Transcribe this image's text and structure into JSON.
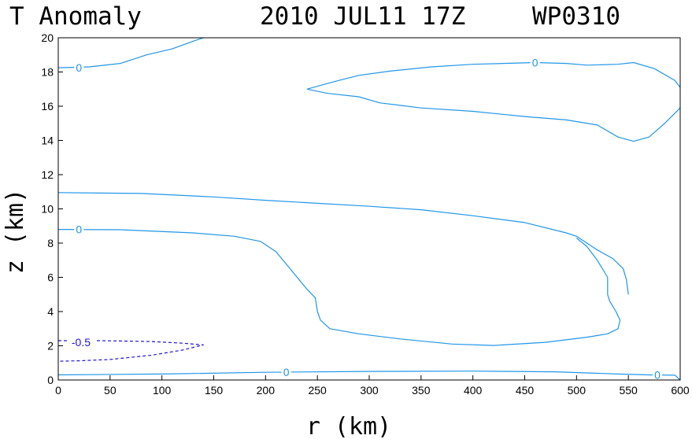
{
  "chart_data": {
    "type": "contour",
    "title": {
      "variable": "T Anomaly",
      "date": "2010 JUL11 17Z",
      "case_id": "WP0310"
    },
    "xlabel": "r (km)",
    "ylabel": "z (km)",
    "xlim": [
      0,
      600
    ],
    "ylim": [
      0,
      20
    ],
    "xticks": [
      0,
      50,
      100,
      150,
      200,
      250,
      300,
      350,
      400,
      450,
      500,
      550,
      600
    ],
    "yticks": [
      0,
      2,
      4,
      6,
      8,
      10,
      12,
      14,
      16,
      18,
      20
    ],
    "colors": {
      "positive": "#2196e8",
      "negative": "#1e14d8",
      "axes": "#000000"
    },
    "contours": [
      {
        "name": "zero-contour-top-left",
        "level": 0,
        "style": "solid",
        "label": "0",
        "label_at": [
          20,
          18.25
        ],
        "points": [
          [
            0,
            18.25
          ],
          [
            30,
            18.3
          ],
          [
            60,
            18.5
          ],
          [
            85,
            19.0
          ],
          [
            110,
            19.35
          ],
          [
            130,
            19.8
          ],
          [
            140,
            20.0
          ]
        ]
      },
      {
        "name": "zero-contour-upper-lobe",
        "level": 0,
        "style": "solid",
        "label": "0",
        "label_at": [
          460,
          18.55
        ],
        "points": [
          [
            240,
            17.0
          ],
          [
            255,
            17.25
          ],
          [
            270,
            17.5
          ],
          [
            290,
            17.8
          ],
          [
            320,
            18.05
          ],
          [
            360,
            18.3
          ],
          [
            400,
            18.45
          ],
          [
            460,
            18.55
          ],
          [
            490,
            18.5
          ],
          [
            510,
            18.4
          ],
          [
            540,
            18.45
          ],
          [
            555,
            18.55
          ],
          [
            575,
            18.2
          ],
          [
            595,
            17.5
          ],
          [
            600,
            17.1
          ]
        ]
      },
      {
        "name": "zero-contour-upper-lobe-bottom",
        "level": 0,
        "style": "solid",
        "points": [
          [
            240,
            17.0
          ],
          [
            260,
            16.75
          ],
          [
            290,
            16.55
          ],
          [
            310,
            16.2
          ],
          [
            350,
            15.9
          ],
          [
            400,
            15.7
          ],
          [
            450,
            15.4
          ],
          [
            490,
            15.2
          ],
          [
            520,
            14.9
          ],
          [
            540,
            14.2
          ],
          [
            555,
            13.95
          ],
          [
            570,
            14.2
          ],
          [
            585,
            15.0
          ],
          [
            600,
            15.9
          ]
        ]
      },
      {
        "name": "zero-contour-mid-upper",
        "level": 0,
        "style": "solid",
        "points": [
          [
            0,
            10.95
          ],
          [
            80,
            10.9
          ],
          [
            150,
            10.7
          ],
          [
            200,
            10.5
          ],
          [
            300,
            10.15
          ],
          [
            350,
            9.95
          ],
          [
            400,
            9.6
          ],
          [
            450,
            9.2
          ],
          [
            490,
            8.6
          ],
          [
            500,
            8.4
          ],
          [
            520,
            7.6
          ],
          [
            535,
            7.1
          ],
          [
            545,
            6.5
          ],
          [
            548,
            5.9
          ],
          [
            550,
            5.0
          ]
        ]
      },
      {
        "name": "zero-contour-mid-loop",
        "level": 0,
        "style": "solid",
        "label": "0",
        "label_at": [
          20,
          8.8
        ],
        "points": [
          [
            0,
            8.8
          ],
          [
            60,
            8.78
          ],
          [
            130,
            8.6
          ],
          [
            170,
            8.4
          ],
          [
            195,
            8.1
          ],
          [
            210,
            7.5
          ],
          [
            225,
            6.4
          ],
          [
            240,
            5.3
          ],
          [
            248,
            4.8
          ],
          [
            250,
            4.0
          ],
          [
            253,
            3.5
          ],
          [
            262,
            3.0
          ],
          [
            290,
            2.7
          ],
          [
            330,
            2.4
          ],
          [
            380,
            2.1
          ],
          [
            420,
            2.02
          ],
          [
            470,
            2.2
          ],
          [
            510,
            2.5
          ],
          [
            530,
            2.7
          ],
          [
            540,
            3.0
          ],
          [
            542,
            3.5
          ],
          [
            538,
            4.0
          ],
          [
            532,
            4.6
          ],
          [
            530,
            5.0
          ],
          [
            530,
            5.4
          ],
          [
            530,
            6.0
          ],
          [
            520,
            7.0
          ],
          [
            510,
            7.8
          ],
          [
            500,
            8.3
          ]
        ]
      },
      {
        "name": "zero-contour-bottom",
        "level": 0,
        "style": "solid",
        "label": "0",
        "label_at": [
          220,
          0.45
        ],
        "label2": "0",
        "label2_at": [
          578,
          0.3
        ],
        "points": [
          [
            0,
            0.3
          ],
          [
            100,
            0.35
          ],
          [
            200,
            0.45
          ],
          [
            300,
            0.5
          ],
          [
            400,
            0.52
          ],
          [
            480,
            0.48
          ],
          [
            540,
            0.35
          ],
          [
            570,
            0.3
          ],
          [
            595,
            0.28
          ],
          [
            600,
            0.0
          ]
        ]
      },
      {
        "name": "minus-half-contour",
        "level": -0.5,
        "style": "dashed",
        "label": "-0.5",
        "label_at": [
          22,
          2.2
        ],
        "points": [
          [
            0,
            2.3
          ],
          [
            40,
            2.3
          ],
          [
            90,
            2.25
          ],
          [
            120,
            2.15
          ],
          [
            140,
            2.05
          ],
          [
            120,
            1.75
          ],
          [
            90,
            1.45
          ],
          [
            50,
            1.2
          ],
          [
            20,
            1.12
          ],
          [
            0,
            1.1
          ]
        ]
      }
    ]
  }
}
